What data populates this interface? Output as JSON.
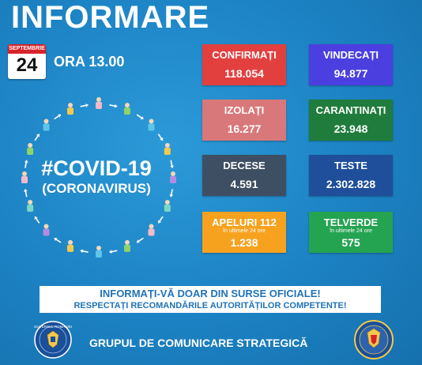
{
  "title": "INFORMARE",
  "calendar": {
    "month": "SEPTEMBRIE",
    "day": "24"
  },
  "time": "ORA 13.00",
  "covid": {
    "tag": "#COVID-19",
    "sub": "(CORONAVIRUS)"
  },
  "stats": [
    {
      "label": "CONFIRMAȚI",
      "value": "118.054",
      "color": "#e2403f"
    },
    {
      "label": "VINDECAȚI",
      "value": "94.877",
      "color": "#4b3fe0"
    },
    {
      "label": "IZOLAȚI",
      "value": "16.277",
      "color": "#d9787a"
    },
    {
      "label": "CARANTINAȚI",
      "value": "23.948",
      "color": "#1f7c3c"
    },
    {
      "label": "DECESE",
      "value": "4.591",
      "color": "#3f4f63"
    },
    {
      "label": "TESTE",
      "value": "2.302.828",
      "color": "#1f4f9a"
    },
    {
      "label": "APELURI 112",
      "sub": "în ultimele 24 ore",
      "value": "1.238",
      "color": "#f6a21f"
    },
    {
      "label": "TELVERDE",
      "sub": "în ultimele 24 ore",
      "value": "575",
      "color": "#24a351"
    }
  ],
  "banner": {
    "line1": "INFORMAȚI-VĂ DOAR DIN SURSE OFICIALE!",
    "line2": "RESPECTAȚI RECOMANDĂRILE AUTORITĂȚILOR COMPETENTE!"
  },
  "footer": "GRUPUL DE COMUNICARE STRATEGICĂ",
  "logos": {
    "left": "GUVERNUL ROMÂNIEI",
    "left_icon": "government-crest-icon",
    "right_icon": "ministry-seal-icon"
  },
  "people_colors": [
    "#f6b9c9",
    "#8fd36a",
    "#5fc4ea",
    "#f2c94c",
    "#b48be0",
    "#7ad7c4"
  ]
}
